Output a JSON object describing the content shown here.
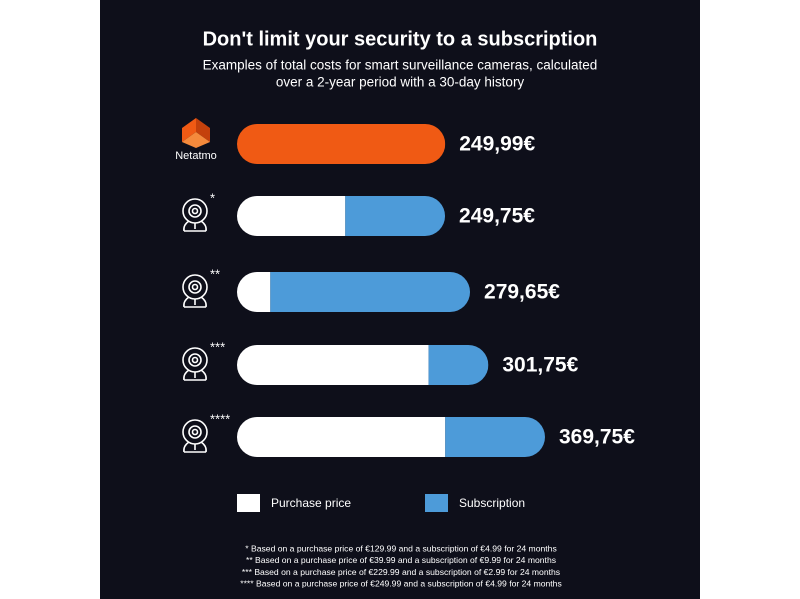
{
  "chart_data": {
    "type": "stacked-bar",
    "title": "Don't limit your security to a subscription",
    "subtitle": [
      "Examples of total costs for smart surveillance cameras, calculated",
      "over a 2-year period with a 30-day history"
    ],
    "categories": [
      "Netatmo",
      "*",
      "**",
      "***",
      "****"
    ],
    "highlight_color": "#f05a14",
    "series": [
      {
        "name": "Purchase price",
        "color": "#ffffff",
        "values": [
          249.99,
          129.99,
          39.99,
          229.99,
          249.99
        ]
      },
      {
        "name": "Subscription",
        "color": "#4d9bd9",
        "values": [
          0,
          119.76,
          239.76,
          71.76,
          119.76
        ]
      }
    ],
    "total_labels": [
      "249,99€",
      "249,75€",
      "279,65€",
      "301,75€",
      "369,75€"
    ],
    "footnotes": [
      "* Based on a purchase price of €129.99 and a subscription of €4.99 for 24 months",
      "** Based on a purchase price of €39.99 and a subscription of €9.99 for 24 months",
      "*** Based on a purchase price of €229.99 and a subscription of €2.99 for 24 months",
      "**** Based on a purchase price of €249.99 and a subscription of €4.99 for 24 months"
    ]
  }
}
